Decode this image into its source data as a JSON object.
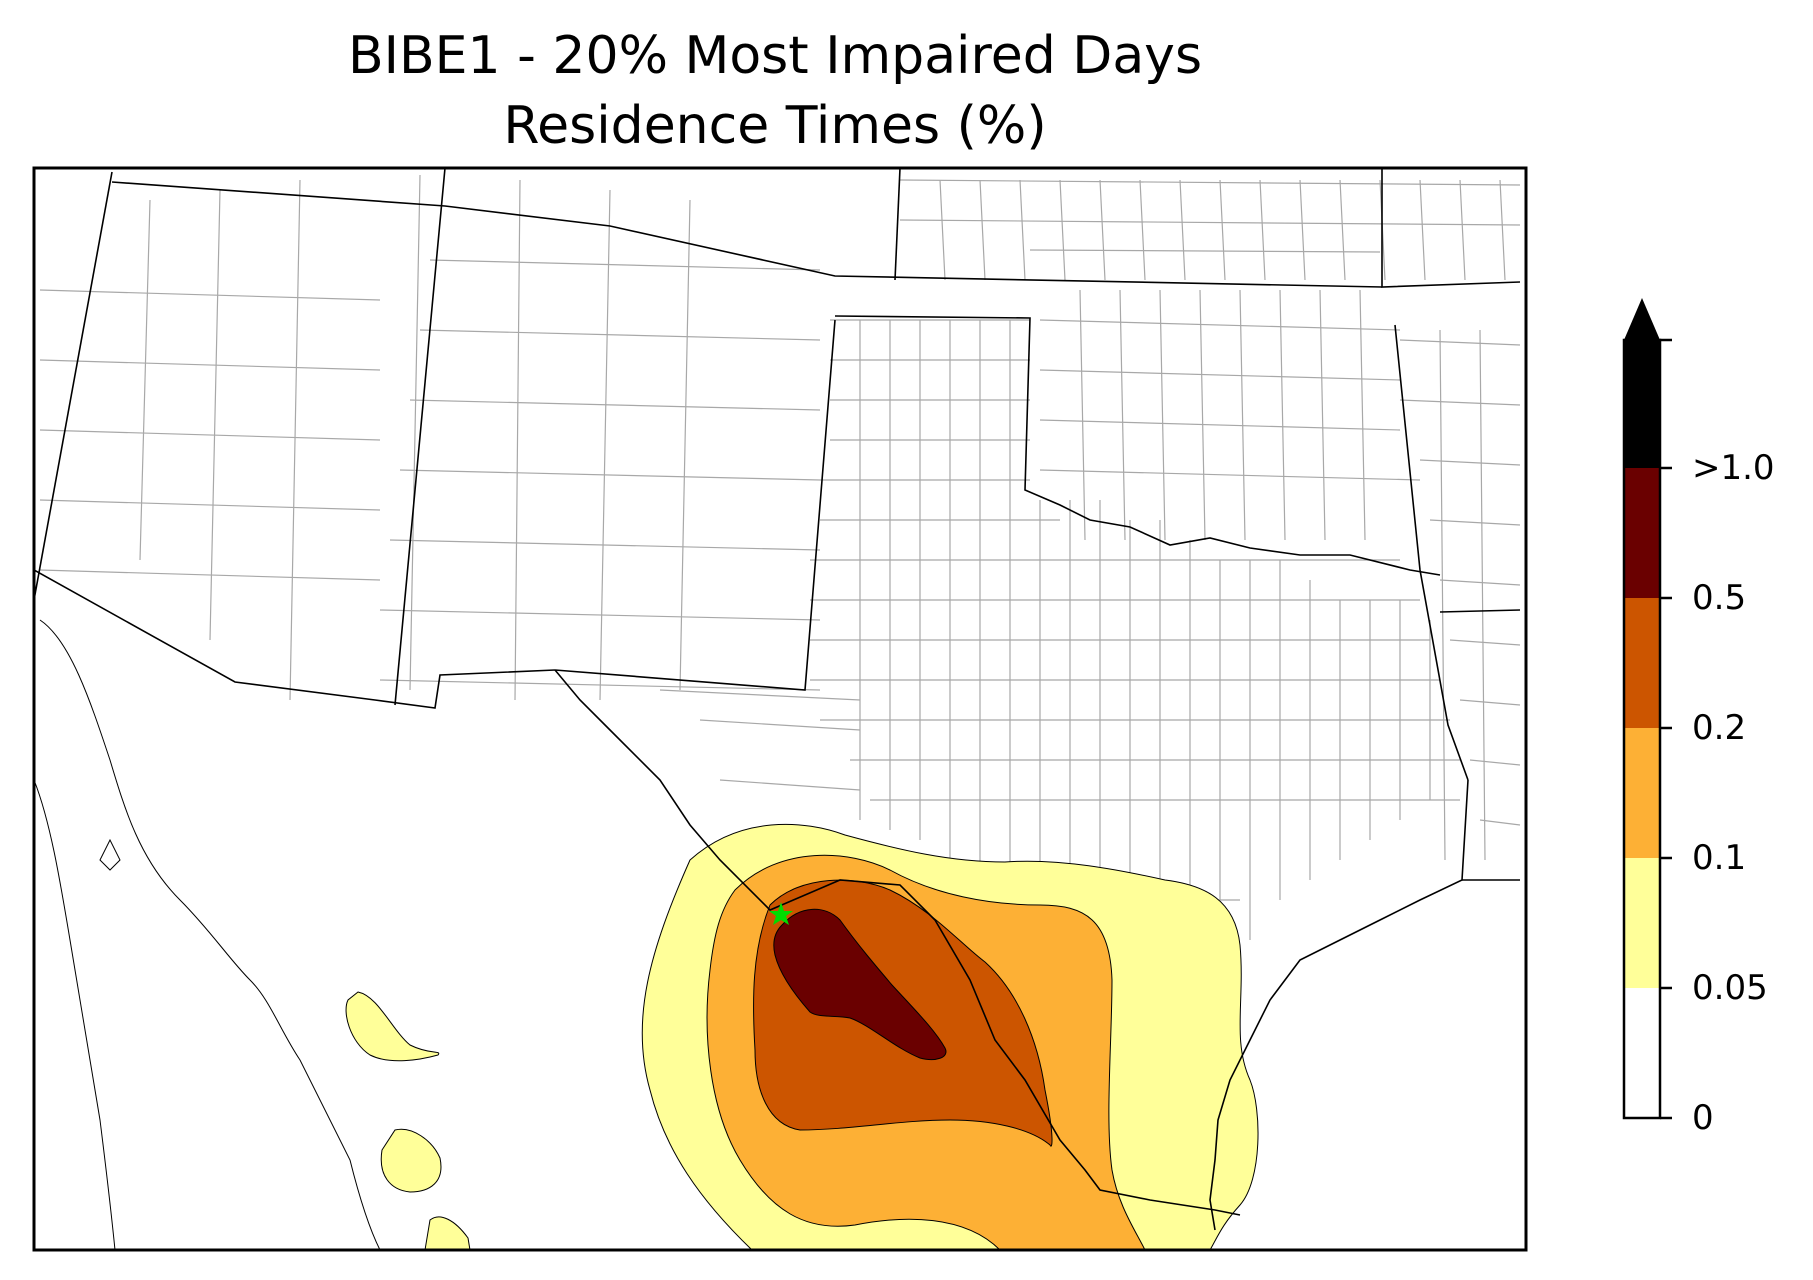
{
  "title": {
    "line1": "BIBE1 - 20% Most Impaired Days",
    "line2": "Residence Times (%)"
  },
  "colorbar": {
    "levels": [
      {
        "label": "0",
        "color": "#ffffff"
      },
      {
        "label": "0.05",
        "color": "#ffff99"
      },
      {
        "label": "0.1",
        "color": "#fdb035"
      },
      {
        "label": "0.2",
        "color": "#cc5500"
      },
      {
        "label": "0.5",
        "color": "#6a0000"
      },
      {
        "label": ">1.0",
        "color": "#000000"
      }
    ],
    "extend": "max"
  },
  "map": {
    "receptor_marker": "green-star",
    "receptor_color": "#00dd00",
    "boundary_color": "#000000",
    "county_color": "#a8a8a8"
  }
}
